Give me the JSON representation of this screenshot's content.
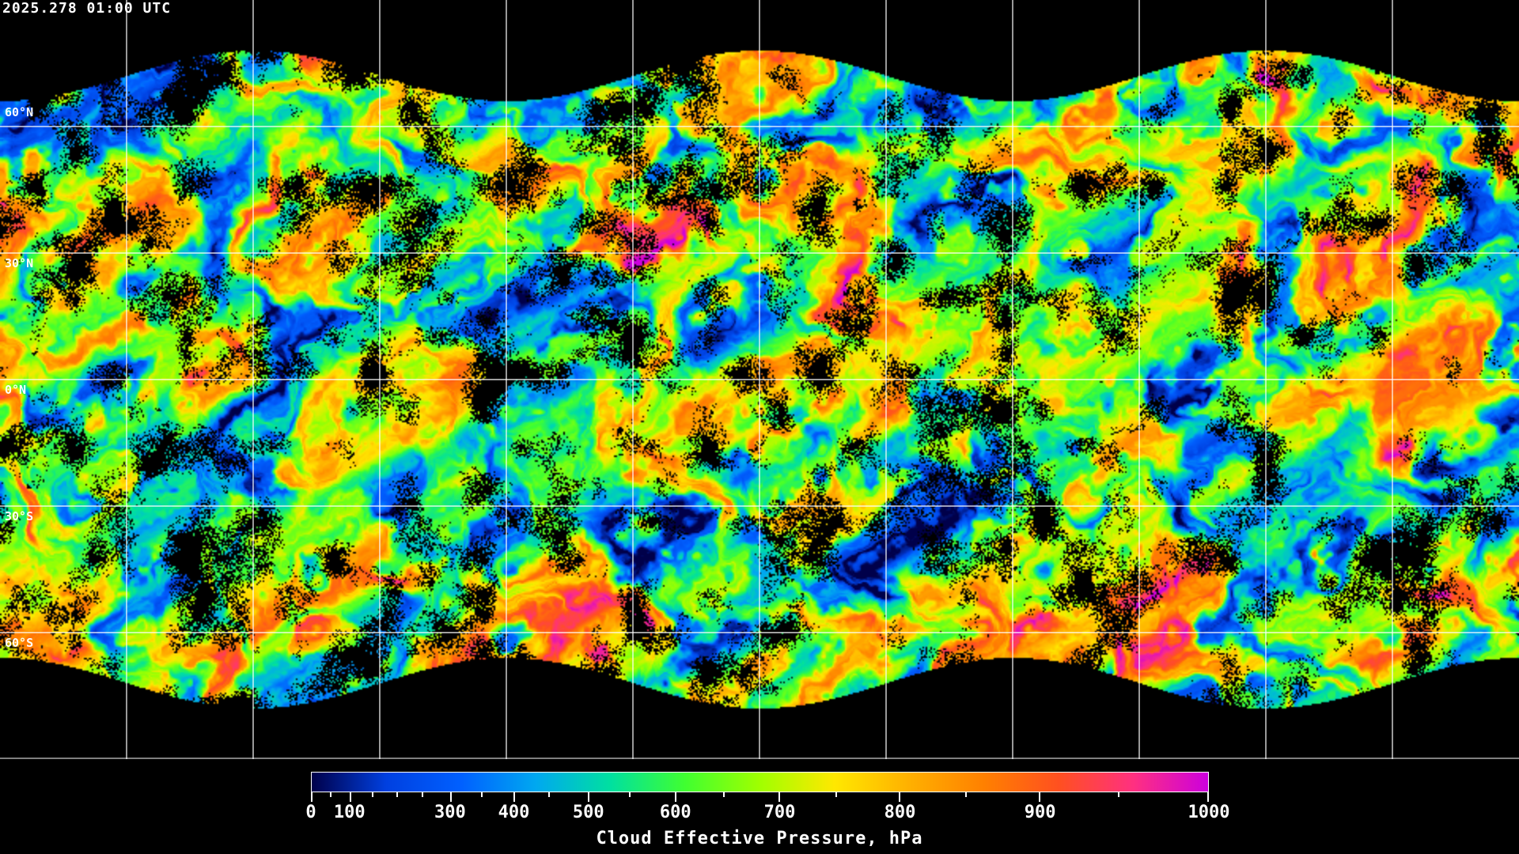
{
  "title": "2025.278 01:00 UTC",
  "map": {
    "projection": "equirectangular",
    "graticule_spacing_deg": 30,
    "coastlines": true,
    "latitude_labels": [
      "60°N",
      "30°N",
      "0°N",
      "30°S",
      "60°S"
    ]
  },
  "colorbar": {
    "title": "Cloud Effective Pressure, hPa",
    "range": [
      0,
      1000
    ],
    "tick_labels": [
      "0",
      "100",
      "300",
      "400",
      "500",
      "600",
      "700",
      "800",
      "900",
      "1000"
    ],
    "colors": [
      "#00004a",
      "#0040e0",
      "#0060ff",
      "#00a8f0",
      "#00e0a0",
      "#40ff30",
      "#a0ff00",
      "#ffe800",
      "#ffb000",
      "#ff8000",
      "#ff5020",
      "#ff3080",
      "#cc00dd"
    ]
  }
}
